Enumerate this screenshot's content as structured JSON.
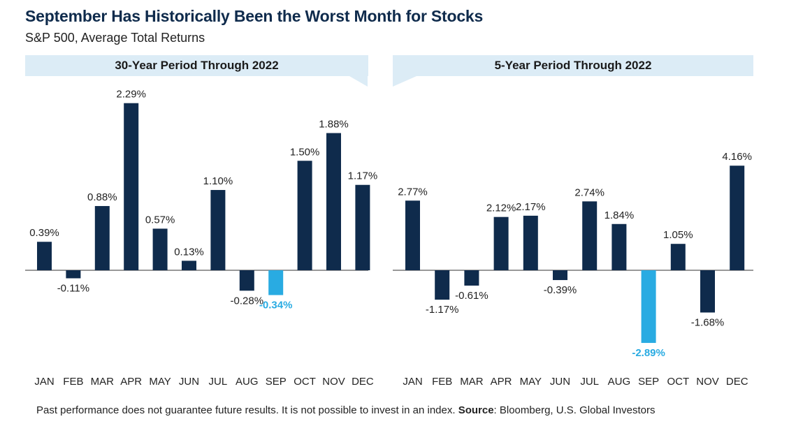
{
  "title": "September Has Historically Been the Worst Month for Stocks",
  "subtitle": "S&P 500, Average Total Returns",
  "footer": {
    "disclaimer": "Past performance does not guarantee future results. It is not possible to invest in an index.",
    "source_label": "Source",
    "source_text": ": Bloomberg, U.S. Global Investors"
  },
  "colors": {
    "bar": "#0f2b4c",
    "highlight": "#29abe2",
    "header_bg": "#dcecf6",
    "axis": "#333333"
  },
  "chart_data": [
    {
      "type": "bar",
      "title": "30-Year Period Through 2022",
      "categories": [
        "JAN",
        "FEB",
        "MAR",
        "APR",
        "MAY",
        "JUN",
        "JUL",
        "AUG",
        "SEP",
        "OCT",
        "NOV",
        "DEC"
      ],
      "values": [
        0.39,
        -0.11,
        0.88,
        2.29,
        0.57,
        0.13,
        1.1,
        -0.28,
        -0.34,
        1.5,
        1.88,
        1.17
      ],
      "labels": [
        "0.39%",
        "-0.11%",
        "0.88%",
        "2.29%",
        "0.57%",
        "0.13%",
        "1.10%",
        "-0.28%",
        "-0.34%",
        "1.50%",
        "1.88%",
        "1.17%"
      ],
      "highlight_category": "SEP",
      "ylim": [
        -0.4,
        2.3
      ],
      "xlabel": "",
      "ylabel": "",
      "grid": false
    },
    {
      "type": "bar",
      "title": "5-Year Period Through 2022",
      "categories": [
        "JAN",
        "FEB",
        "MAR",
        "APR",
        "MAY",
        "JUN",
        "JUL",
        "AUG",
        "SEP",
        "OCT",
        "NOV",
        "DEC"
      ],
      "values": [
        2.77,
        -1.17,
        -0.61,
        2.12,
        2.17,
        -0.39,
        2.74,
        1.84,
        -2.89,
        1.05,
        -1.68,
        4.16
      ],
      "labels": [
        "2.77%",
        "-1.17%",
        "-0.61%",
        "2.12%",
        "2.17%",
        "-0.39%",
        "2.74%",
        "1.84%",
        "-2.89%",
        "1.05%",
        "-1.68%",
        "4.16%"
      ],
      "highlight_category": "SEP",
      "ylim": [
        -2.9,
        4.2
      ],
      "xlabel": "",
      "ylabel": "",
      "grid": false
    }
  ]
}
